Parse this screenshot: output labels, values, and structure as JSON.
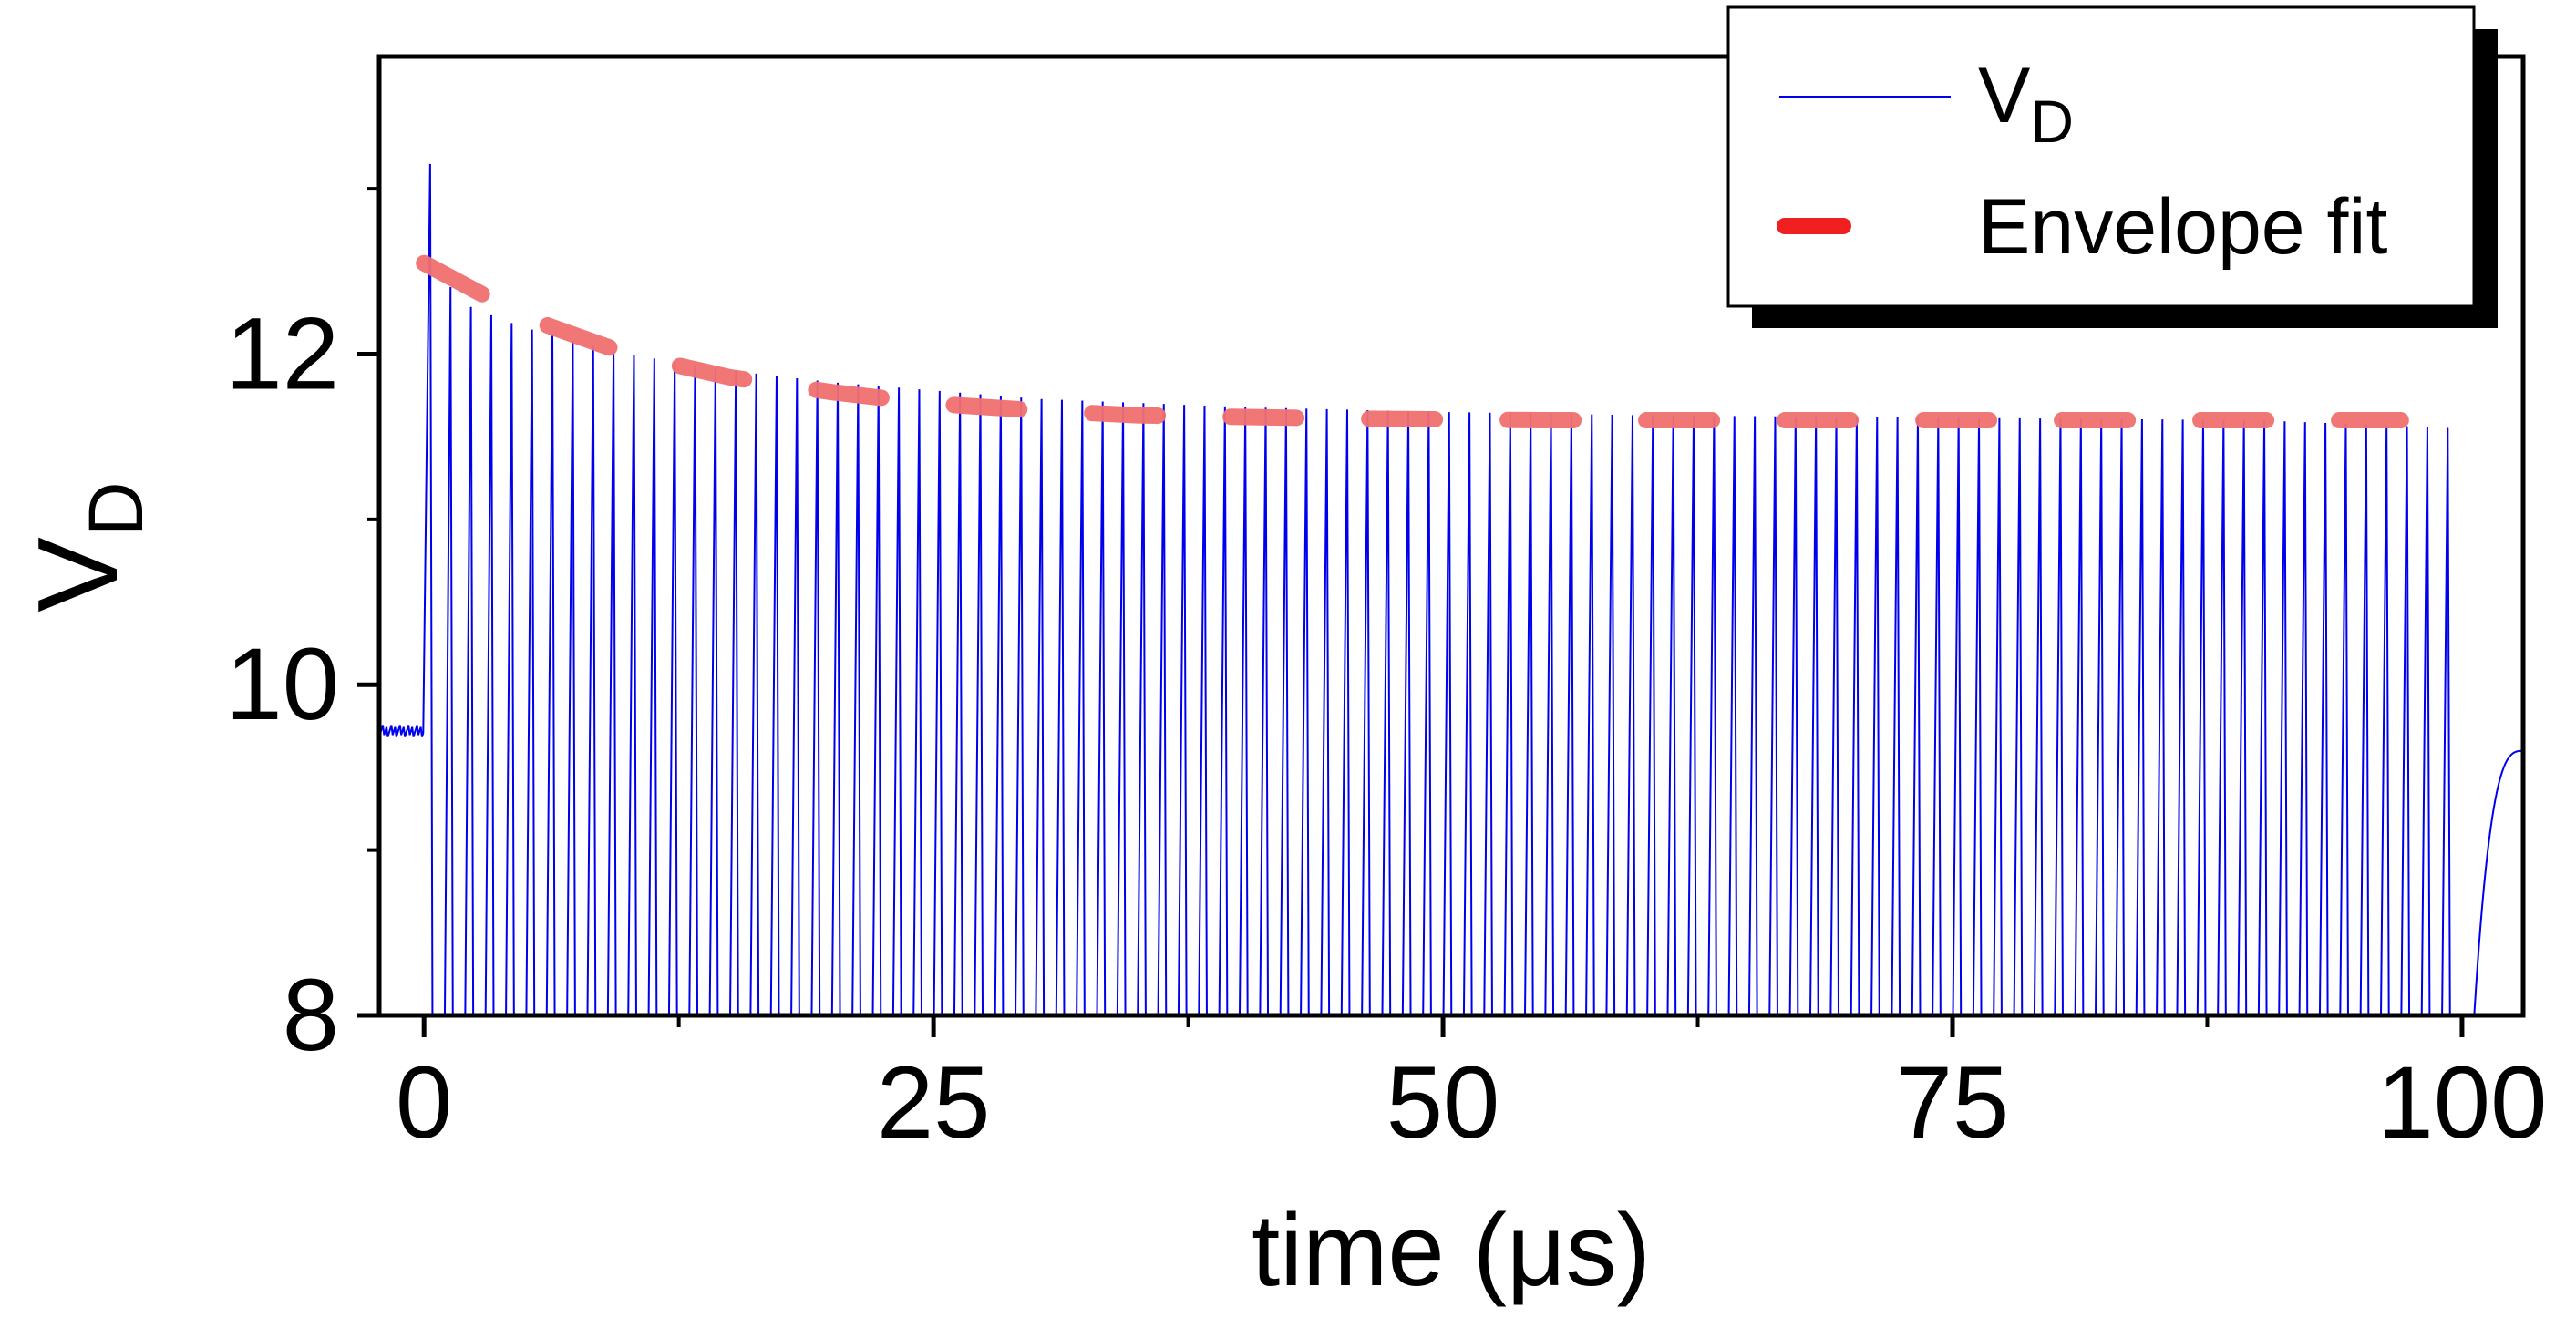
{
  "chart_data": {
    "type": "line",
    "title": "",
    "xlabel": "time (μs)",
    "ylabel": "V",
    "ylabel_subscript": "D",
    "xlim": [
      -2.2,
      103
    ],
    "ylim": [
      8,
      13.8
    ],
    "xticks": [
      0,
      25,
      50,
      75,
      100
    ],
    "xtick_labels": [
      "0",
      "25",
      "50",
      "75",
      "100"
    ],
    "xminor": [
      12.5,
      37.5,
      62.5,
      87.5
    ],
    "yticks": [
      8,
      10,
      12
    ],
    "ytick_labels": [
      "8",
      "10",
      "12"
    ],
    "yminor": [
      9,
      11,
      13
    ],
    "grid": false,
    "legend_position": "top-right",
    "series": [
      {
        "name": "V",
        "name_subscript": "D",
        "color": "#0000ee",
        "style": "solid-thin",
        "pulse_period": 1.0,
        "pulse_start": 0.0,
        "pulse_end": 100.0,
        "baseline_before": 9.72,
        "trough": 8.0,
        "recovery_end_value": 9.6,
        "first_peak": 13.15,
        "peak_points": [
          [
            0.3,
            13.15
          ],
          [
            1,
            12.45
          ],
          [
            2,
            12.3
          ],
          [
            4,
            12.2
          ],
          [
            6,
            12.12
          ],
          [
            10,
            12.0
          ],
          [
            15,
            11.9
          ],
          [
            20,
            11.83
          ],
          [
            25,
            11.78
          ],
          [
            30,
            11.73
          ],
          [
            40,
            11.68
          ],
          [
            50,
            11.65
          ],
          [
            60,
            11.63
          ],
          [
            70,
            11.62
          ],
          [
            80,
            11.61
          ],
          [
            90,
            11.6
          ],
          [
            100,
            11.55
          ]
        ]
      },
      {
        "name": "Envelope fit",
        "color": "#f07070",
        "style": "dashed-thick",
        "x": [
          0,
          5,
          10,
          15,
          20,
          25,
          30,
          35,
          40,
          45,
          50,
          55,
          60,
          70,
          80,
          90,
          97
        ],
        "y": [
          12.55,
          12.22,
          12.0,
          11.86,
          11.77,
          11.7,
          11.66,
          11.63,
          11.62,
          11.61,
          11.605,
          11.6,
          11.6,
          11.6,
          11.6,
          11.6,
          11.6
        ]
      }
    ]
  }
}
